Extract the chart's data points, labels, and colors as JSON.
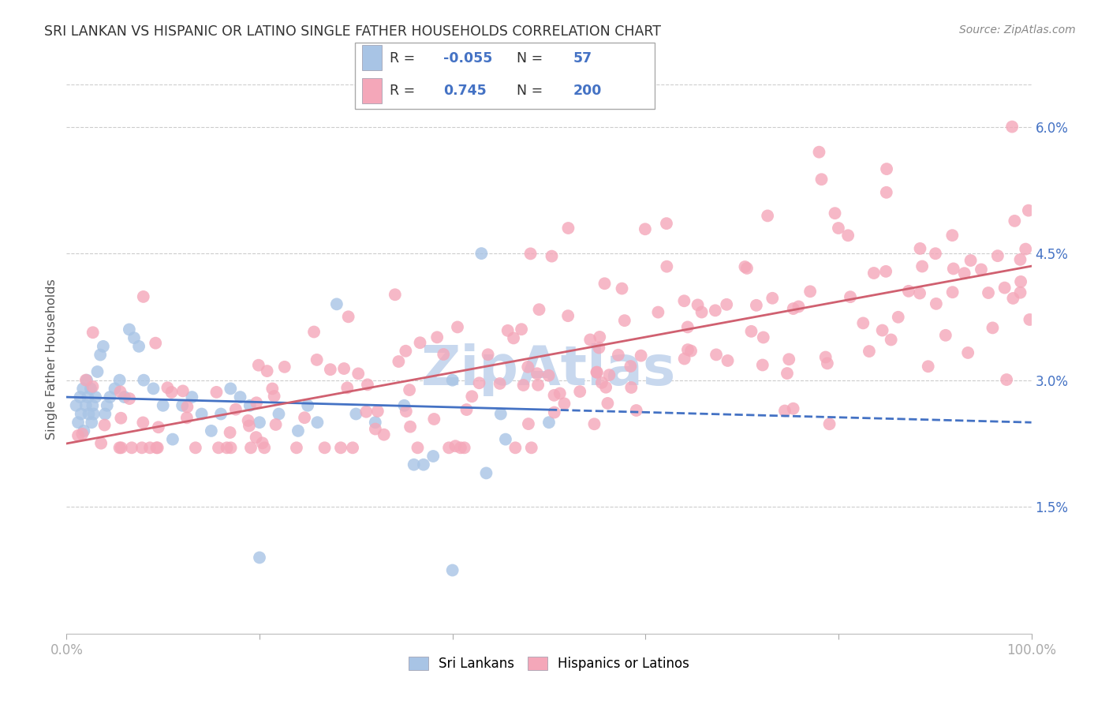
{
  "title": "SRI LANKAN VS HISPANIC OR LATINO SINGLE FATHER HOUSEHOLDS CORRELATION CHART",
  "source": "Source: ZipAtlas.com",
  "ylabel": "Single Father Households",
  "x_min": 0.0,
  "x_max": 100.0,
  "y_min": 0.0,
  "y_max": 6.5,
  "y_ticks": [
    1.5,
    3.0,
    4.5,
    6.0
  ],
  "x_tick_positions": [
    0.0,
    20.0,
    40.0,
    60.0,
    80.0,
    100.0
  ],
  "x_tick_labels": [
    "0.0%",
    "",
    "",
    "",
    "",
    "100.0%"
  ],
  "sri_lankan_color": "#A8C4E5",
  "hispanic_color": "#F4A7B9",
  "sri_lankan_R": -0.055,
  "sri_lankan_N": 57,
  "hispanic_R": 0.745,
  "hispanic_N": 200,
  "trend_blue_color": "#4472C4",
  "trend_pink_color": "#D06070",
  "watermark": "ZipAtlas",
  "watermark_color": "#C8D8EE",
  "legend_label_1": "Sri Lankans",
  "legend_label_2": "Hispanics or Latinos",
  "background_color": "#FFFFFF",
  "grid_color": "#CCCCCC",
  "title_color": "#333333",
  "axis_label_color": "#555555",
  "tick_label_color": "#4472C4",
  "sri_trend_y0": 2.8,
  "sri_trend_y50": 2.65,
  "sri_trend_y100": 2.5,
  "hisp_trend_y0": 2.25,
  "hisp_trend_y100": 4.35
}
